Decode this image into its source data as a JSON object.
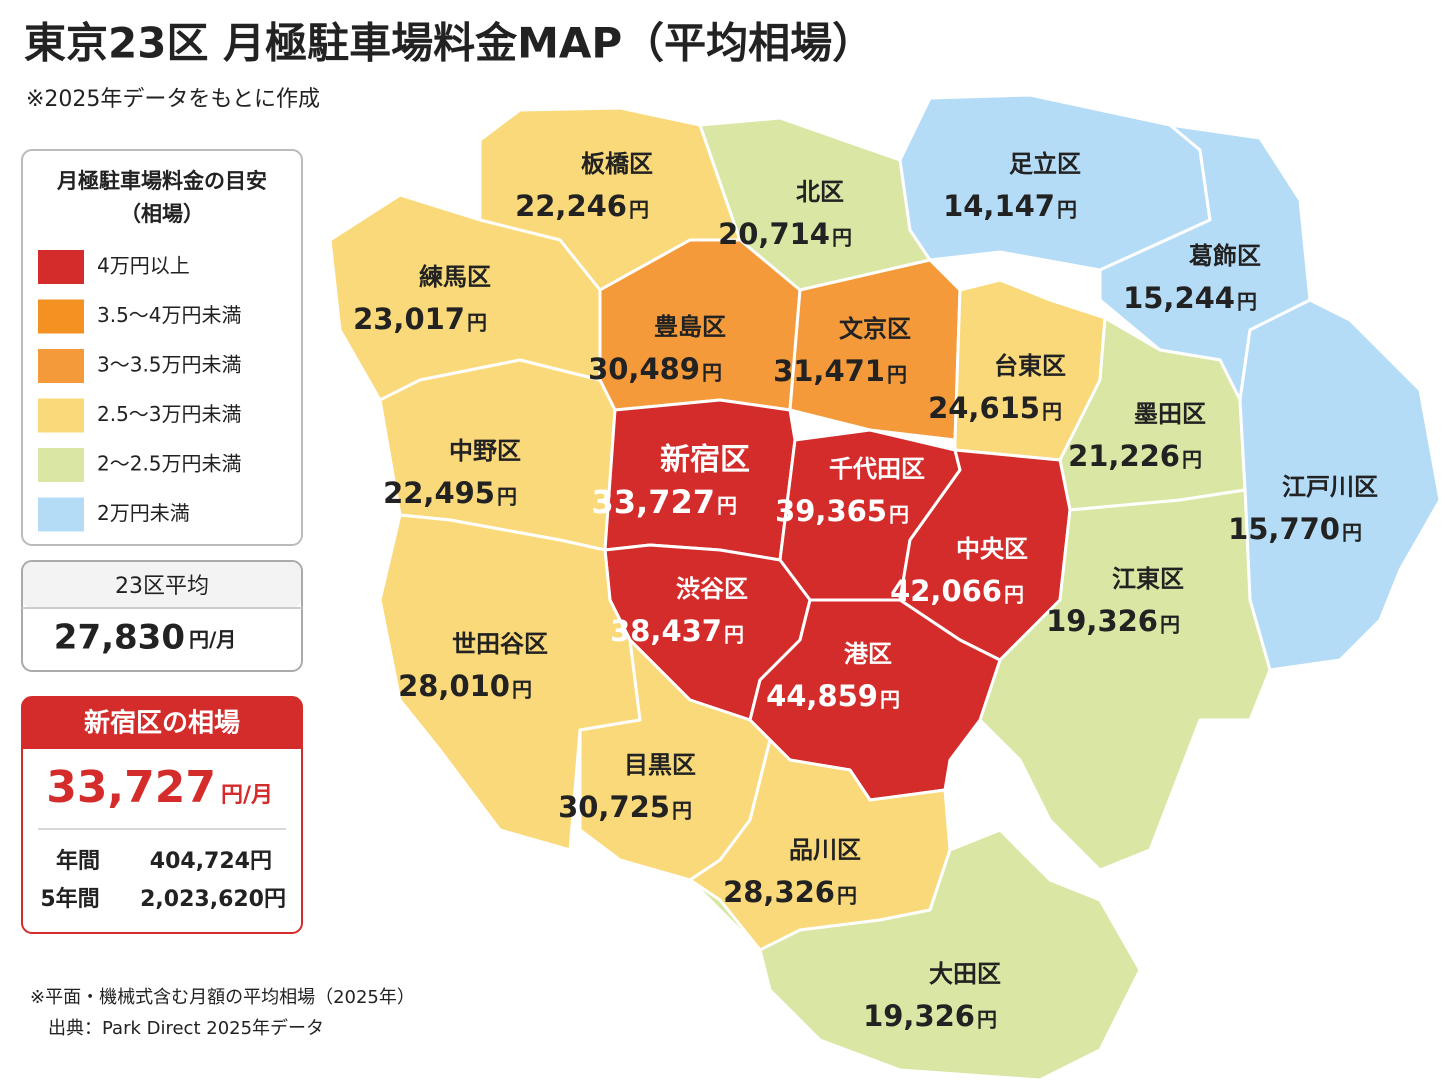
{
  "header": {
    "title": "東京23区 月極駐車場料金MAP（平均相場）",
    "subtitle": "※2025年データをもとに作成"
  },
  "legend": {
    "title": [
      "月極駐車場料金の目安",
      "（相場）"
    ],
    "items": [
      {
        "label": "4万円以上",
        "color": "#d42b2b"
      },
      {
        "label": "3.5〜4万円未満",
        "color": "#f39123"
      },
      {
        "label": "3〜3.5万円未満",
        "color": "#f49a3a"
      },
      {
        "label": "2.5〜3万円未満",
        "color": "#fad97a"
      },
      {
        "label": "2〜2.5万円未満",
        "color": "#d9e6a4"
      },
      {
        "label": "2万円未満",
        "color": "#b5dcf7"
      }
    ]
  },
  "average": {
    "label": "23区平均",
    "value": "27,830",
    "unit": "円/月"
  },
  "highlight": {
    "title": "新宿区の相場",
    "value": "33,727",
    "unit": "円/月",
    "rows": [
      {
        "label": "年間",
        "value": "404,724円"
      },
      {
        "label": "5年間",
        "value": "2,023,620円"
      }
    ]
  },
  "map": {
    "unit": "円",
    "districts": [
      {
        "name": "板橋区",
        "price": "22,246",
        "tier": 3
      },
      {
        "name": "北区",
        "price": "20,714",
        "tier": 4
      },
      {
        "name": "足立区",
        "price": "14,147",
        "tier": 5
      },
      {
        "name": "葛飾区",
        "price": "15,244",
        "tier": 5
      },
      {
        "name": "練馬区",
        "price": "23,017",
        "tier": 3
      },
      {
        "name": "豊島区",
        "price": "30,489",
        "tier": 2
      },
      {
        "name": "文京区",
        "price": "31,471",
        "tier": 2
      },
      {
        "name": "台東区",
        "price": "24,615",
        "tier": 3
      },
      {
        "name": "墨田区",
        "price": "21,226",
        "tier": 4
      },
      {
        "name": "江戸川区",
        "price": "15,770",
        "tier": 5
      },
      {
        "name": "中野区",
        "price": "22,495",
        "tier": 3
      },
      {
        "name": "新宿区",
        "price": "33,727",
        "tier": 0
      },
      {
        "name": "千代田区",
        "price": "39,365",
        "tier": 0
      },
      {
        "name": "中央区",
        "price": "42,066",
        "tier": 0
      },
      {
        "name": "江東区",
        "price": "19,326",
        "tier": 4
      },
      {
        "name": "渋谷区",
        "price": "38,437",
        "tier": 0
      },
      {
        "name": "港区",
        "price": "44,859",
        "tier": 0
      },
      {
        "name": "世田谷区",
        "price": "28,010",
        "tier": 3
      },
      {
        "name": "目黒区",
        "price": "30,725",
        "tier": 3
      },
      {
        "name": "品川区",
        "price": "28,326",
        "tier": 3
      },
      {
        "name": "大田区",
        "price": "19,326",
        "tier": 4
      }
    ]
  },
  "footnotes": [
    "※平面・機械式含む月額の平均相場（2025年）",
    "出典：Park Direct 2025年データ"
  ]
}
